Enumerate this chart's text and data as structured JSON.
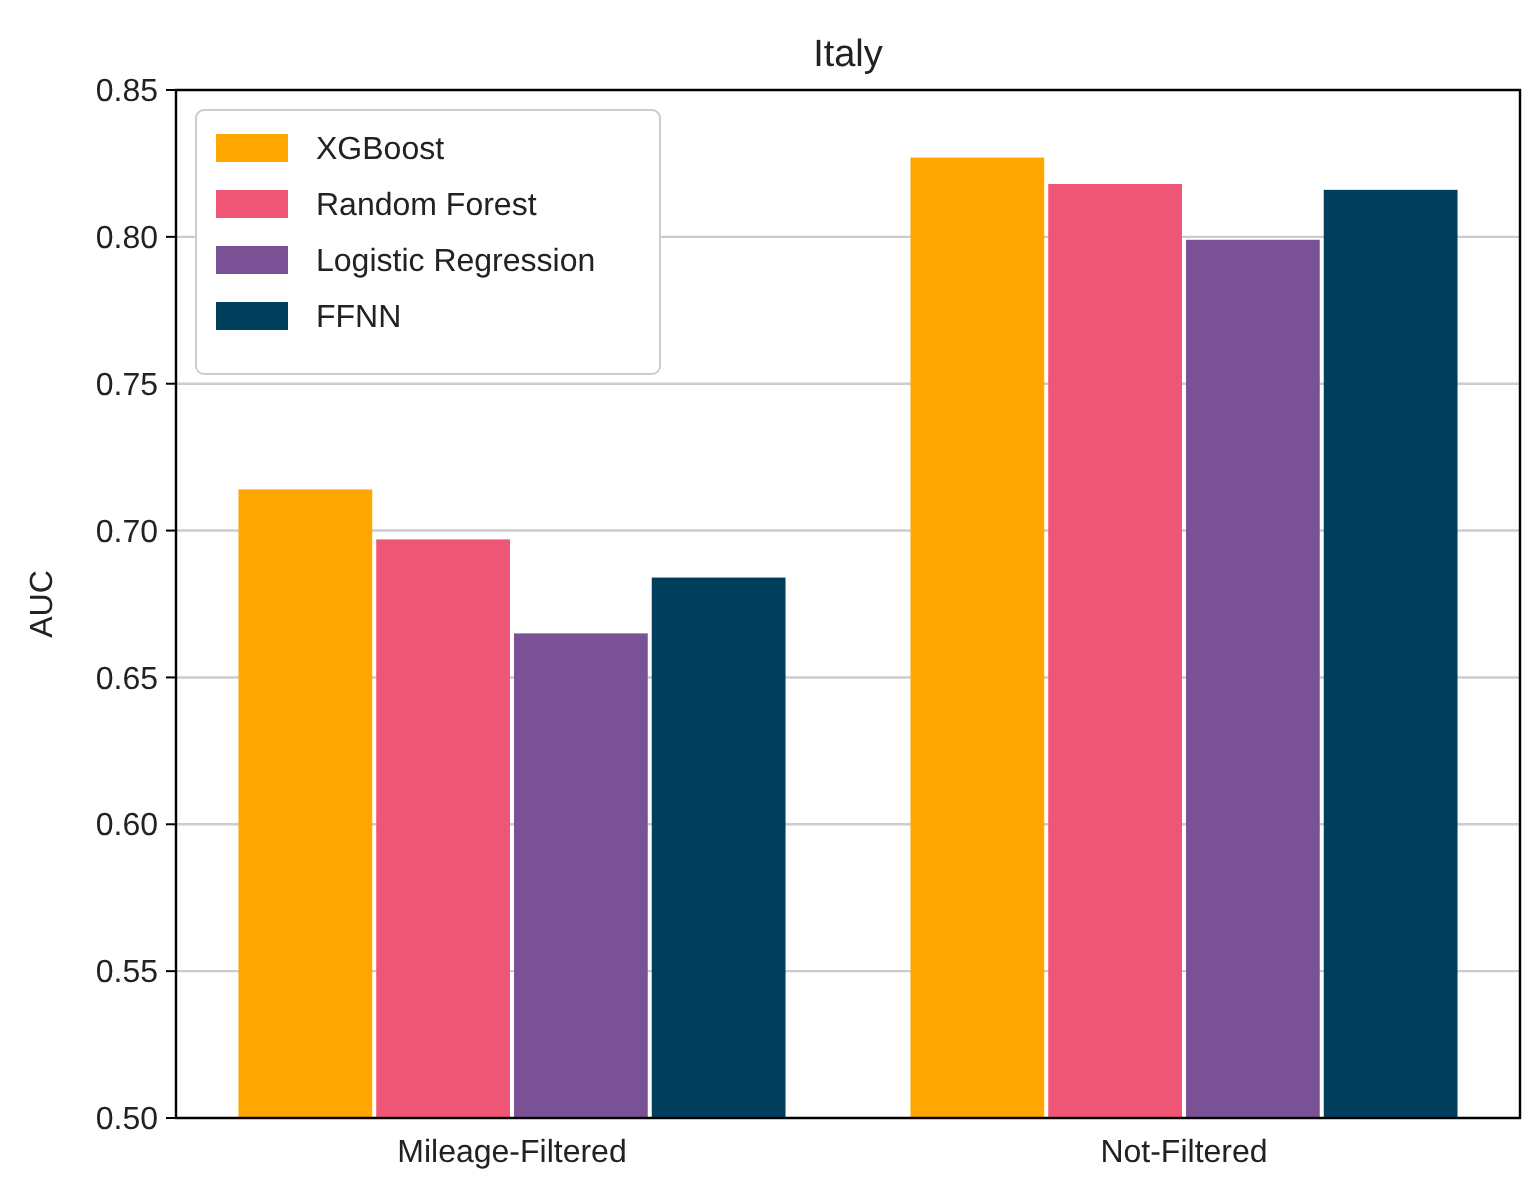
{
  "chart_data": {
    "type": "bar",
    "title": "Italy",
    "ylabel": "AUC",
    "categories": [
      "Mileage-Filtered",
      "Not-Filtered"
    ],
    "series": [
      {
        "name": "XGBoost",
        "color": "#ffa600",
        "values": [
          0.714,
          0.827
        ]
      },
      {
        "name": "Random Forest",
        "color": "#ef5675",
        "values": [
          0.697,
          0.818
        ]
      },
      {
        "name": "Logistic Regression",
        "color": "#7a5195",
        "values": [
          0.665,
          0.799
        ]
      },
      {
        "name": "FFNN",
        "color": "#003f5c",
        "values": [
          0.684,
          0.816
        ]
      }
    ],
    "ylim": [
      0.5,
      0.85
    ],
    "yticks": [
      {
        "value": 0.5,
        "label": "0.50"
      },
      {
        "value": 0.55,
        "label": "0.55"
      },
      {
        "value": 0.6,
        "label": "0.60"
      },
      {
        "value": 0.65,
        "label": "0.65"
      },
      {
        "value": 0.7,
        "label": "0.70"
      },
      {
        "value": 0.75,
        "label": "0.75"
      },
      {
        "value": 0.8,
        "label": "0.80"
      },
      {
        "value": 0.85,
        "label": "0.85"
      }
    ],
    "grid": "y",
    "legend": "top left"
  }
}
